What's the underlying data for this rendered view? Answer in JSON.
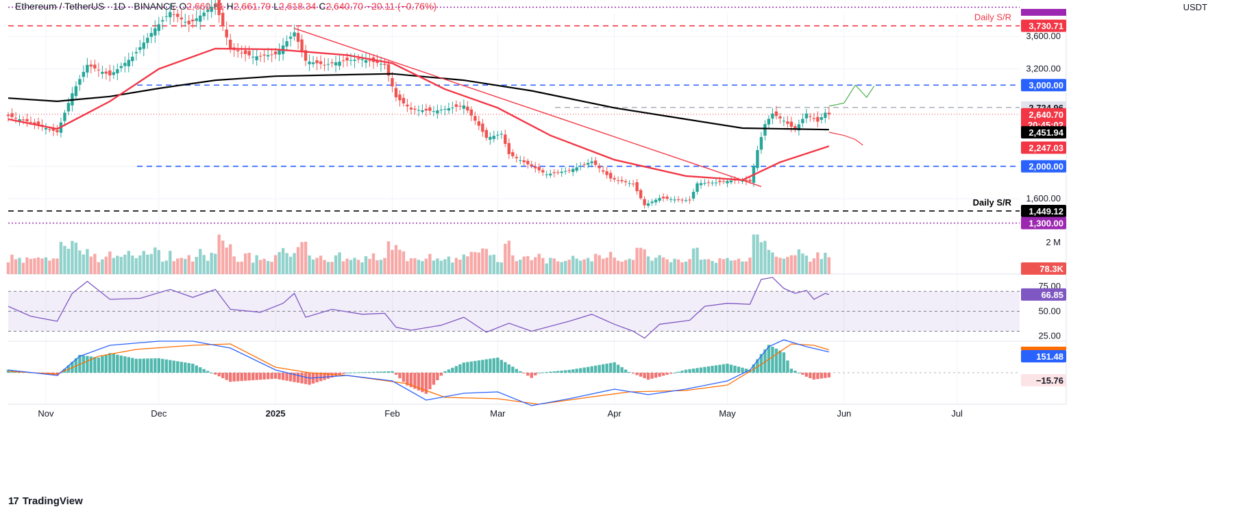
{
  "header": {
    "symbol": "Ethereum / TetherUS · 1D · BINANCE",
    "o_label": "O",
    "o_value": "2,660.81",
    "h_label": "H",
    "h_value": "2,661.79",
    "l_label": "L",
    "l_value": "2,618.34",
    "c_label": "C",
    "c_value": "2,640.70",
    "change": "−20.11 (−0.76%)"
  },
  "currency": "USDT",
  "brand": {
    "logo_text": "17",
    "name": "TradingView"
  },
  "colors": {
    "up": "#26a69a",
    "down": "#ef5350",
    "ma50": "#f23645",
    "ma200": "#000000",
    "rsi": "#7e57c2",
    "macd": "#2962ff",
    "signal": "#ff6d00",
    "level_blue": "#2962ff"
  },
  "chart_data": [
    {
      "type": "line",
      "panel": "price",
      "title": "",
      "y_ticks": [
        1600,
        2000,
        3200,
        3600
      ],
      "y_tick_labels": [
        "1,600.00",
        "2,000.00",
        "3,200.00",
        "3,600.00"
      ],
      "ylim": [
        1280,
        3880
      ],
      "x_ticks": [
        "Nov",
        "Dec",
        "2025",
        "Feb",
        "Mar",
        "Apr",
        "May",
        "Jun",
        "Jul"
      ],
      "x_tick_dates": [
        "2024-11-01",
        "2024-12-01",
        "2025-01-01",
        "2025-02-01",
        "2025-03-01",
        "2025-04-01",
        "2025-05-01",
        "2025-06-01",
        "2025-07-01"
      ],
      "xlim": [
        "2024-10-22",
        "2025-07-30"
      ],
      "price_path": [
        [
          "2024-10-22",
          2620
        ],
        [
          "2024-10-28",
          2540
        ],
        [
          "2024-11-04",
          2420
        ],
        [
          "2024-11-08",
          2900
        ],
        [
          "2024-11-12",
          3250
        ],
        [
          "2024-11-18",
          3120
        ],
        [
          "2024-11-24",
          3350
        ],
        [
          "2024-11-30",
          3700
        ],
        [
          "2024-12-04",
          3900
        ],
        [
          "2024-12-09",
          3750
        ],
        [
          "2024-12-16",
          4000
        ],
        [
          "2024-12-20",
          3450
        ],
        [
          "2024-12-26",
          3350
        ],
        [
          "2025-01-01",
          3380
        ],
        [
          "2025-01-06",
          3650
        ],
        [
          "2025-01-09",
          3300
        ],
        [
          "2025-01-14",
          3250
        ],
        [
          "2025-01-19",
          3300
        ],
        [
          "2025-01-24",
          3320
        ],
        [
          "2025-01-30",
          3250
        ],
        [
          "2025-02-02",
          2850
        ],
        [
          "2025-02-06",
          2700
        ],
        [
          "2025-02-12",
          2680
        ],
        [
          "2025-02-20",
          2750
        ],
        [
          "2025-02-24",
          2500
        ],
        [
          "2025-02-26",
          2350
        ],
        [
          "2025-03-02",
          2400
        ],
        [
          "2025-03-04",
          2150
        ],
        [
          "2025-03-10",
          2000
        ],
        [
          "2025-03-14",
          1900
        ],
        [
          "2025-03-20",
          1950
        ],
        [
          "2025-03-26",
          2060
        ],
        [
          "2025-03-31",
          1850
        ],
        [
          "2025-04-06",
          1780
        ],
        [
          "2025-04-09",
          1520
        ],
        [
          "2025-04-13",
          1610
        ],
        [
          "2025-04-17",
          1590
        ],
        [
          "2025-04-21",
          1580
        ],
        [
          "2025-04-23",
          1790
        ],
        [
          "2025-04-28",
          1800
        ],
        [
          "2025-05-03",
          1830
        ],
        [
          "2025-05-07",
          1810
        ],
        [
          "2025-05-09",
          2200
        ],
        [
          "2025-05-11",
          2520
        ],
        [
          "2025-05-13",
          2650
        ],
        [
          "2025-05-16",
          2560
        ],
        [
          "2025-05-19",
          2450
        ],
        [
          "2025-05-22",
          2650
        ],
        [
          "2025-05-25",
          2550
        ],
        [
          "2025-05-27",
          2660
        ],
        [
          "2025-05-28",
          2640.7
        ]
      ],
      "ma50_path": [
        [
          "2024-10-22",
          2580
        ],
        [
          "2024-11-04",
          2460
        ],
        [
          "2024-11-18",
          2800
        ],
        [
          "2024-12-01",
          3200
        ],
        [
          "2024-12-16",
          3450
        ],
        [
          "2025-01-01",
          3440
        ],
        [
          "2025-01-20",
          3370
        ],
        [
          "2025-02-01",
          3270
        ],
        [
          "2025-02-15",
          2950
        ],
        [
          "2025-03-01",
          2720
        ],
        [
          "2025-03-15",
          2380
        ],
        [
          "2025-04-01",
          2080
        ],
        [
          "2025-04-20",
          1880
        ],
        [
          "2025-05-05",
          1830
        ],
        [
          "2025-05-15",
          2050
        ],
        [
          "2025-05-28",
          2247.03
        ]
      ],
      "ma200_path": [
        [
          "2024-10-22",
          2840
        ],
        [
          "2024-11-04",
          2800
        ],
        [
          "2024-11-18",
          2860
        ],
        [
          "2024-12-01",
          2960
        ],
        [
          "2024-12-16",
          3060
        ],
        [
          "2025-01-01",
          3110
        ],
        [
          "2025-02-01",
          3140
        ],
        [
          "2025-02-20",
          3060
        ],
        [
          "2025-03-10",
          2930
        ],
        [
          "2025-04-01",
          2720
        ],
        [
          "2025-04-20",
          2580
        ],
        [
          "2025-05-05",
          2470
        ],
        [
          "2025-05-28",
          2451.94
        ]
      ],
      "projection_up": [
        [
          "2025-05-28",
          2740
        ],
        [
          "2025-06-01",
          2780
        ],
        [
          "2025-06-04",
          3000
        ],
        [
          "2025-06-07",
          2850
        ],
        [
          "2025-06-09",
          2990
        ]
      ],
      "projection_down": [
        [
          "2025-05-28",
          2420
        ],
        [
          "2025-06-01",
          2380
        ],
        [
          "2025-06-04",
          2330
        ],
        [
          "2025-06-06",
          2260
        ]
      ],
      "trendline": [
        [
          "2025-01-06",
          3700
        ],
        [
          "2025-05-10",
          1750
        ]
      ],
      "levels": [
        {
          "value": 3730.71,
          "label": "3,730.71",
          "annotation": "Daily S/R",
          "style": "dashed",
          "color": "#f23645",
          "tag_bg": "#f23645"
        },
        {
          "value": 3000,
          "label": "3,000.00",
          "annotation": "",
          "style": "dashed",
          "color": "#2962ff",
          "tag_bg": "#2962ff"
        },
        {
          "value": 2724.96,
          "label": "2,724.96",
          "annotation": "",
          "style": "dashed",
          "color": "#b2b5be",
          "tag_bg": "#e0e3eb"
        },
        {
          "value": 2000,
          "label": "2,000.00",
          "annotation": "",
          "style": "dashed",
          "color": "#2962ff",
          "tag_bg": "#2962ff"
        },
        {
          "value": 1449.12,
          "label": "1,449.12",
          "annotation": "Daily S/R",
          "style": "dashed",
          "color": "#000000",
          "tag_bg": "#000000"
        },
        {
          "value": 3960,
          "label": "",
          "annotation": "",
          "style": "dotted",
          "color": "#9c27b0",
          "tag_bg": "#9c27b0"
        },
        {
          "value": 1300,
          "label": "1,300.00",
          "annotation": "",
          "style": "dotted",
          "color": "#9c27b0",
          "tag_bg": "#9c27b0"
        }
      ],
      "price_tag": {
        "value": 2640.7,
        "label": "2,640.70",
        "countdown": "20:45:02"
      },
      "ma50_tag": {
        "value": 2247.03,
        "label": "2,247.03"
      },
      "ma200_tag": {
        "value": 2451.94,
        "label": "2,451.94"
      }
    },
    {
      "type": "bar",
      "panel": "volume",
      "title": "",
      "y_ticks": [
        2000000
      ],
      "y_tick_labels": [
        "2 M"
      ],
      "ylim": [
        0,
        2600000
      ],
      "last_value_label": "78.3K"
    },
    {
      "type": "line",
      "panel": "rsi",
      "title": "",
      "y_ticks": [
        25,
        50,
        75
      ],
      "y_tick_labels": [
        "25.00",
        "50.00",
        "75.00"
      ],
      "ylim": [
        20,
        86
      ],
      "bands": [
        30,
        70
      ],
      "last_value_label": "66.85",
      "path": [
        [
          "2024-10-22",
          55
        ],
        [
          "2024-10-28",
          45
        ],
        [
          "2024-11-04",
          40
        ],
        [
          "2024-11-08",
          68
        ],
        [
          "2024-11-12",
          80
        ],
        [
          "2024-11-18",
          62
        ],
        [
          "2024-11-26",
          63
        ],
        [
          "2024-12-04",
          72
        ],
        [
          "2024-12-10",
          64
        ],
        [
          "2024-12-16",
          72
        ],
        [
          "2024-12-20",
          52
        ],
        [
          "2024-12-28",
          49
        ],
        [
          "2025-01-03",
          58
        ],
        [
          "2025-01-06",
          68
        ],
        [
          "2025-01-09",
          44
        ],
        [
          "2025-01-16",
          52
        ],
        [
          "2025-01-24",
          47
        ],
        [
          "2025-01-30",
          48
        ],
        [
          "2025-02-02",
          34
        ],
        [
          "2025-02-06",
          31
        ],
        [
          "2025-02-14",
          36
        ],
        [
          "2025-02-20",
          44
        ],
        [
          "2025-02-26",
          29
        ],
        [
          "2025-03-04",
          38
        ],
        [
          "2025-03-10",
          30
        ],
        [
          "2025-03-20",
          40
        ],
        [
          "2025-03-26",
          47
        ],
        [
          "2025-04-01",
          37
        ],
        [
          "2025-04-06",
          30
        ],
        [
          "2025-04-09",
          23
        ],
        [
          "2025-04-13",
          37
        ],
        [
          "2025-04-21",
          41
        ],
        [
          "2025-04-25",
          55
        ],
        [
          "2025-05-01",
          58
        ],
        [
          "2025-05-07",
          57
        ],
        [
          "2025-05-10",
          82
        ],
        [
          "2025-05-13",
          84
        ],
        [
          "2025-05-16",
          73
        ],
        [
          "2025-05-19",
          68
        ],
        [
          "2025-05-22",
          71
        ],
        [
          "2025-05-24",
          62
        ],
        [
          "2025-05-27",
          68
        ],
        [
          "2025-05-28",
          66.85
        ]
      ]
    },
    {
      "type": "line",
      "panel": "macd",
      "title": "",
      "ylim": [
        -220,
        230
      ],
      "zero": 0,
      "macd_label": "151.48",
      "hist_label": "−15.76",
      "macd_path": [
        [
          "2024-10-22",
          20
        ],
        [
          "2024-11-04",
          -20
        ],
        [
          "2024-11-10",
          120
        ],
        [
          "2024-11-18",
          200
        ],
        [
          "2024-12-01",
          230
        ],
        [
          "2024-12-10",
          230
        ],
        [
          "2024-12-20",
          180
        ],
        [
          "2025-01-01",
          20
        ],
        [
          "2025-01-10",
          -40
        ],
        [
          "2025-01-20",
          -20
        ],
        [
          "2025-02-01",
          -60
        ],
        [
          "2025-02-10",
          -200
        ],
        [
          "2025-02-20",
          -150
        ],
        [
          "2025-03-01",
          -140
        ],
        [
          "2025-03-10",
          -240
        ],
        [
          "2025-03-20",
          -190
        ],
        [
          "2025-04-01",
          -120
        ],
        [
          "2025-04-10",
          -160
        ],
        [
          "2025-04-20",
          -120
        ],
        [
          "2025-05-01",
          -60
        ],
        [
          "2025-05-07",
          20
        ],
        [
          "2025-05-12",
          190
        ],
        [
          "2025-05-16",
          240
        ],
        [
          "2025-05-22",
          190
        ],
        [
          "2025-05-28",
          151.48
        ]
      ],
      "signal_path": [
        [
          "2024-10-22",
          10
        ],
        [
          "2024-11-04",
          -10
        ],
        [
          "2024-11-15",
          120
        ],
        [
          "2024-11-25",
          170
        ],
        [
          "2024-12-10",
          200
        ],
        [
          "2024-12-20",
          210
        ],
        [
          "2025-01-01",
          40
        ],
        [
          "2025-01-10",
          0
        ],
        [
          "2025-01-20",
          -20
        ],
        [
          "2025-02-05",
          -80
        ],
        [
          "2025-02-15",
          -180
        ],
        [
          "2025-03-01",
          -190
        ],
        [
          "2025-03-12",
          -230
        ],
        [
          "2025-03-25",
          -180
        ],
        [
          "2025-04-05",
          -140
        ],
        [
          "2025-04-20",
          -130
        ],
        [
          "2025-05-01",
          -90
        ],
        [
          "2025-05-10",
          60
        ],
        [
          "2025-05-18",
          210
        ],
        [
          "2025-05-24",
          200
        ],
        [
          "2025-05-28",
          167.24
        ]
      ]
    }
  ]
}
